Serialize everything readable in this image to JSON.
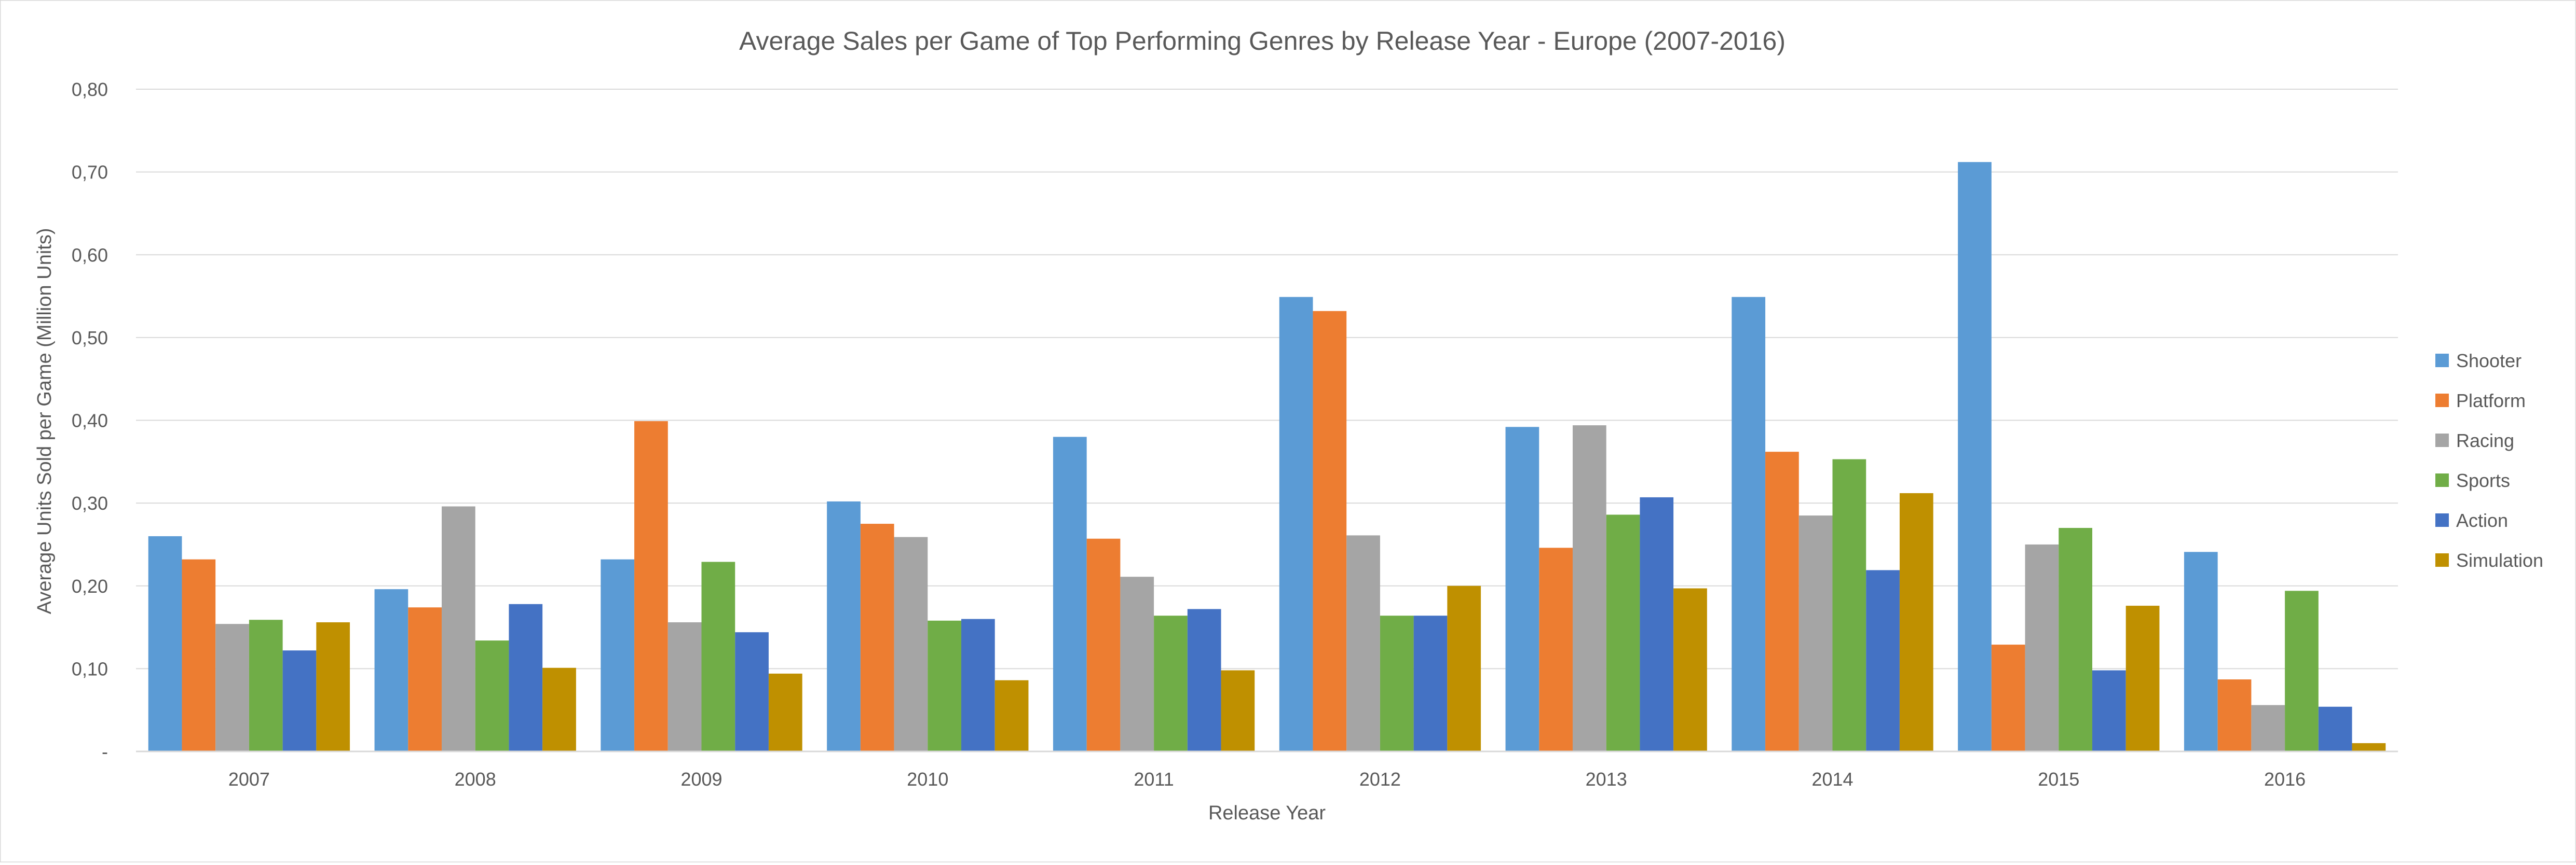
{
  "chart_data": {
    "type": "bar",
    "title": "Average Sales per Game of Top Performing Genres by Release Year - Europe (2007-2016)",
    "xlabel": "Release Year",
    "ylabel": "Average Units Sold per Game (Million Units)",
    "ylim": [
      0,
      0.8
    ],
    "yticks": [
      {
        "value": 0,
        "label": "-"
      },
      {
        "value": 0.1,
        "label": "0,10"
      },
      {
        "value": 0.2,
        "label": "0,20"
      },
      {
        "value": 0.3,
        "label": "0,30"
      },
      {
        "value": 0.4,
        "label": "0,40"
      },
      {
        "value": 0.5,
        "label": "0,50"
      },
      {
        "value": 0.6,
        "label": "0,60"
      },
      {
        "value": 0.7,
        "label": "0,70"
      },
      {
        "value": 0.8,
        "label": "0,80"
      }
    ],
    "grid": true,
    "legend_position": "right",
    "categories": [
      "2007",
      "2008",
      "2009",
      "2010",
      "2011",
      "2012",
      "2013",
      "2014",
      "2015",
      "2016"
    ],
    "series": [
      {
        "name": "Shooter",
        "color": "#5B9BD5",
        "values": [
          0.26,
          0.196,
          0.232,
          0.302,
          0.38,
          0.549,
          0.392,
          0.549,
          0.712,
          0.241
        ]
      },
      {
        "name": "Platform",
        "color": "#ED7D31",
        "values": [
          0.232,
          0.174,
          0.399,
          0.275,
          0.257,
          0.532,
          0.246,
          0.362,
          0.129,
          0.087
        ]
      },
      {
        "name": "Racing",
        "color": "#A5A5A5",
        "values": [
          0.154,
          0.296,
          0.156,
          0.259,
          0.211,
          0.261,
          0.394,
          0.285,
          0.25,
          0.056
        ]
      },
      {
        "name": "Sports",
        "color": "#70AD47",
        "values": [
          0.159,
          0.134,
          0.229,
          0.158,
          0.164,
          0.164,
          0.286,
          0.353,
          0.27,
          0.194
        ]
      },
      {
        "name": "Action",
        "color": "#4472C4",
        "values": [
          0.122,
          0.178,
          0.144,
          0.16,
          0.172,
          0.164,
          0.307,
          0.219,
          0.098,
          0.054
        ]
      },
      {
        "name": "Simulation",
        "color": "#BF9000",
        "values": [
          0.156,
          0.101,
          0.094,
          0.086,
          0.098,
          0.2,
          0.197,
          0.312,
          0.176,
          0.01
        ]
      }
    ]
  }
}
